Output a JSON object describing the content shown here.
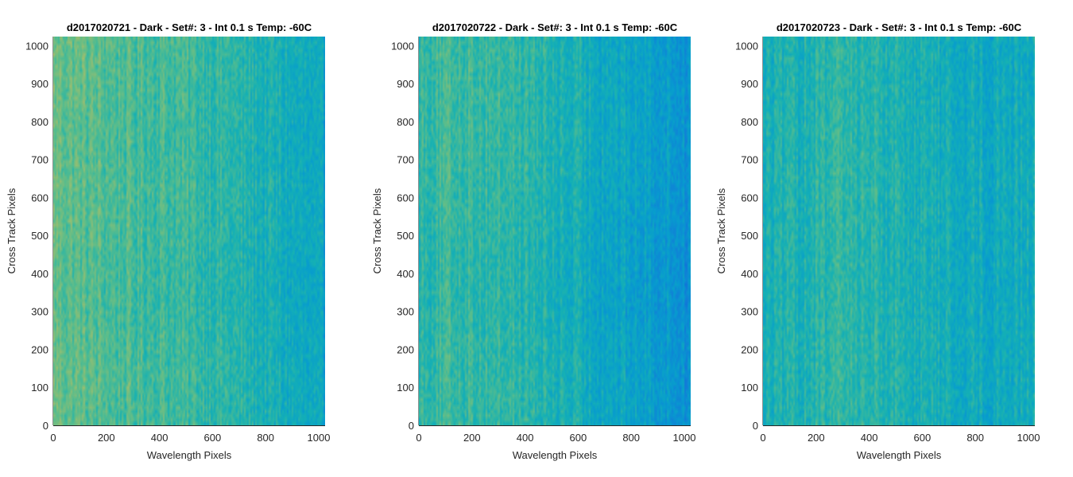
{
  "chart_data": [
    {
      "type": "heatmap",
      "title": "d2017020721 - Dark - Set#: 3 - Int 0.1 s Temp: -60C",
      "xlabel": "Wavelength Pixels",
      "ylabel": "Cross Track Pixels",
      "xlim": [
        0,
        1024
      ],
      "ylim": [
        0,
        1024
      ],
      "xticks": [
        0,
        200,
        400,
        600,
        800,
        1000
      ],
      "yticks": [
        0,
        100,
        200,
        300,
        400,
        500,
        600,
        700,
        800,
        900,
        1000
      ],
      "grid": false,
      "colormap": "parula",
      "column_trend": [
        0.62,
        0.58,
        0.55,
        0.53,
        0.52,
        0.5,
        0.47,
        0.42,
        0.38,
        0.33,
        0.26
      ],
      "row_trend": [
        0.5,
        0.52,
        0.5,
        0.48,
        0.47,
        0.5,
        0.52,
        0.5,
        0.51,
        0.54,
        0.55
      ]
    },
    {
      "type": "heatmap",
      "title": "d2017020722 - Dark - Set#: 3 - Int 0.1 s Temp: -60C",
      "xlabel": "Wavelength Pixels",
      "ylabel": "Cross Track Pixels",
      "xlim": [
        0,
        1024
      ],
      "ylim": [
        0,
        1024
      ],
      "xticks": [
        0,
        200,
        400,
        600,
        800,
        1000
      ],
      "yticks": [
        0,
        100,
        200,
        300,
        400,
        500,
        600,
        700,
        800,
        900,
        1000
      ],
      "grid": false,
      "colormap": "parula",
      "column_trend": [
        0.48,
        0.5,
        0.5,
        0.49,
        0.45,
        0.4,
        0.36,
        0.32,
        0.28,
        0.24,
        0.16
      ],
      "row_trend": [
        0.5,
        0.5,
        0.48,
        0.45,
        0.45,
        0.47,
        0.5,
        0.52,
        0.52,
        0.53,
        0.52
      ]
    },
    {
      "type": "heatmap",
      "title": "d2017020723 - Dark - Set#: 3 - Int 0.1 s Temp: -60C",
      "xlabel": "Wavelength Pixels",
      "ylabel": "Cross Track Pixels",
      "xlim": [
        0,
        1024
      ],
      "ylim": [
        0,
        1024
      ],
      "xticks": [
        0,
        200,
        400,
        600,
        800,
        1000
      ],
      "yticks": [
        0,
        100,
        200,
        300,
        400,
        500,
        600,
        700,
        800,
        900,
        1000
      ],
      "grid": false,
      "colormap": "parula",
      "column_trend": [
        0.4,
        0.42,
        0.45,
        0.48,
        0.46,
        0.43,
        0.4,
        0.37,
        0.36,
        0.37,
        0.38
      ],
      "row_trend": [
        0.45,
        0.47,
        0.48,
        0.46,
        0.45,
        0.47,
        0.48,
        0.47,
        0.46,
        0.45,
        0.46
      ]
    }
  ]
}
